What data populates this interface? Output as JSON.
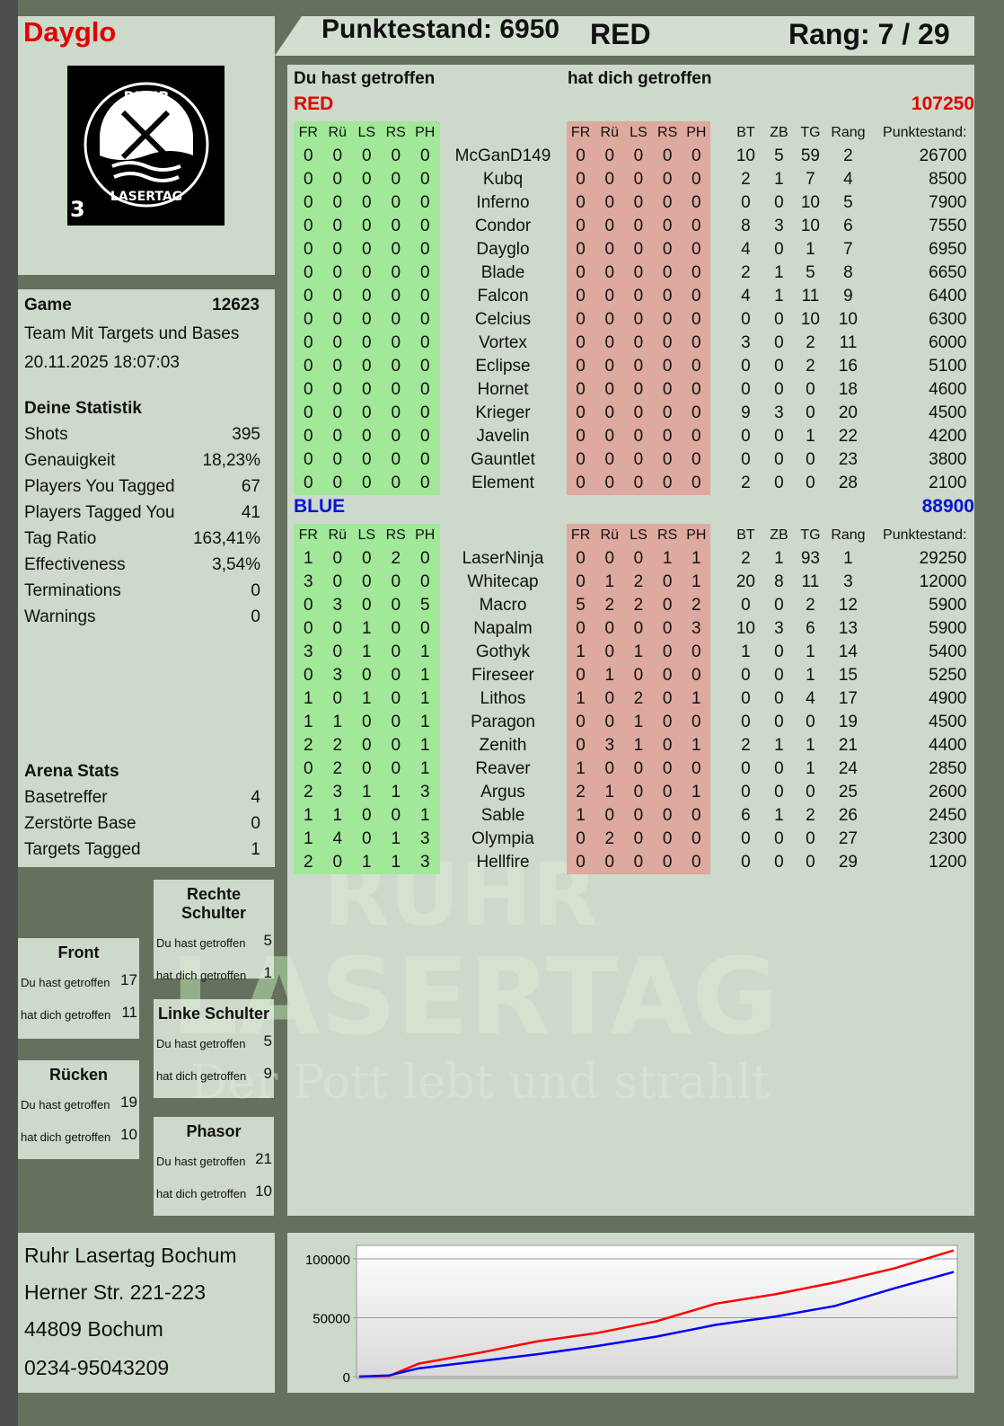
{
  "player": "Dayglo",
  "logo": {
    "text_top": "RUHR",
    "text_bottom": "LASERTAG",
    "badge": "3"
  },
  "header": {
    "score_label": "Punktestand: 6950",
    "team": "RED",
    "rank_label": "Rang: 7 / 29"
  },
  "columns": {
    "you_hit": "Du hast getroffen",
    "hit_you": "hat dich getroffen"
  },
  "headers": [
    "FR",
    "Rü",
    "LS",
    "RS",
    "PH",
    "",
    "FR",
    "Rü",
    "LS",
    "RS",
    "PH",
    "",
    "BT",
    "ZB",
    "TG",
    "Rang",
    "Punktestand:"
  ],
  "teams": [
    {
      "name": "RED",
      "total": "107250",
      "color": "#e30000",
      "rows": [
        [
          "0",
          "0",
          "0",
          "0",
          "0",
          "McGanD149",
          "0",
          "0",
          "0",
          "0",
          "0",
          "10",
          "5",
          "59",
          "2",
          "26700"
        ],
        [
          "0",
          "0",
          "0",
          "0",
          "0",
          "Kubq",
          "0",
          "0",
          "0",
          "0",
          "0",
          "2",
          "1",
          "7",
          "4",
          "8500"
        ],
        [
          "0",
          "0",
          "0",
          "0",
          "0",
          "Inferno",
          "0",
          "0",
          "0",
          "0",
          "0",
          "0",
          "0",
          "10",
          "5",
          "7900"
        ],
        [
          "0",
          "0",
          "0",
          "0",
          "0",
          "Condor",
          "0",
          "0",
          "0",
          "0",
          "0",
          "8",
          "3",
          "10",
          "6",
          "7550"
        ],
        [
          "0",
          "0",
          "0",
          "0",
          "0",
          "Dayglo",
          "0",
          "0",
          "0",
          "0",
          "0",
          "4",
          "0",
          "1",
          "7",
          "6950"
        ],
        [
          "0",
          "0",
          "0",
          "0",
          "0",
          "Blade",
          "0",
          "0",
          "0",
          "0",
          "0",
          "2",
          "1",
          "5",
          "8",
          "6650"
        ],
        [
          "0",
          "0",
          "0",
          "0",
          "0",
          "Falcon",
          "0",
          "0",
          "0",
          "0",
          "0",
          "4",
          "1",
          "11",
          "9",
          "6400"
        ],
        [
          "0",
          "0",
          "0",
          "0",
          "0",
          "Celcius",
          "0",
          "0",
          "0",
          "0",
          "0",
          "0",
          "0",
          "10",
          "10",
          "6300"
        ],
        [
          "0",
          "0",
          "0",
          "0",
          "0",
          "Vortex",
          "0",
          "0",
          "0",
          "0",
          "0",
          "3",
          "0",
          "2",
          "11",
          "6000"
        ],
        [
          "0",
          "0",
          "0",
          "0",
          "0",
          "Eclipse",
          "0",
          "0",
          "0",
          "0",
          "0",
          "0",
          "0",
          "2",
          "16",
          "5100"
        ],
        [
          "0",
          "0",
          "0",
          "0",
          "0",
          "Hornet",
          "0",
          "0",
          "0",
          "0",
          "0",
          "0",
          "0",
          "0",
          "18",
          "4600"
        ],
        [
          "0",
          "0",
          "0",
          "0",
          "0",
          "Krieger",
          "0",
          "0",
          "0",
          "0",
          "0",
          "9",
          "3",
          "0",
          "20",
          "4500"
        ],
        [
          "0",
          "0",
          "0",
          "0",
          "0",
          "Javelin",
          "0",
          "0",
          "0",
          "0",
          "0",
          "0",
          "0",
          "1",
          "22",
          "4200"
        ],
        [
          "0",
          "0",
          "0",
          "0",
          "0",
          "Gauntlet",
          "0",
          "0",
          "0",
          "0",
          "0",
          "0",
          "0",
          "0",
          "23",
          "3800"
        ],
        [
          "0",
          "0",
          "0",
          "0",
          "0",
          "Element",
          "0",
          "0",
          "0",
          "0",
          "0",
          "2",
          "0",
          "0",
          "28",
          "2100"
        ]
      ]
    },
    {
      "name": "BLUE",
      "total": "88900",
      "color": "#0a14d8",
      "rows": [
        [
          "1",
          "0",
          "0",
          "2",
          "0",
          "LaserNinja",
          "0",
          "0",
          "0",
          "1",
          "1",
          "2",
          "1",
          "93",
          "1",
          "29250"
        ],
        [
          "3",
          "0",
          "0",
          "0",
          "0",
          "Whitecap",
          "0",
          "1",
          "2",
          "0",
          "1",
          "20",
          "8",
          "11",
          "3",
          "12000"
        ],
        [
          "0",
          "3",
          "0",
          "0",
          "5",
          "Macro",
          "5",
          "2",
          "2",
          "0",
          "2",
          "0",
          "0",
          "2",
          "12",
          "5900"
        ],
        [
          "0",
          "0",
          "1",
          "0",
          "0",
          "Napalm",
          "0",
          "0",
          "0",
          "0",
          "3",
          "10",
          "3",
          "6",
          "13",
          "5900"
        ],
        [
          "3",
          "0",
          "1",
          "0",
          "1",
          "Gothyk",
          "1",
          "0",
          "1",
          "0",
          "0",
          "1",
          "0",
          "1",
          "14",
          "5400"
        ],
        [
          "0",
          "3",
          "0",
          "0",
          "1",
          "Fireseer",
          "0",
          "1",
          "0",
          "0",
          "0",
          "0",
          "0",
          "1",
          "15",
          "5250"
        ],
        [
          "1",
          "0",
          "1",
          "0",
          "1",
          "Lithos",
          "1",
          "0",
          "2",
          "0",
          "1",
          "0",
          "0",
          "4",
          "17",
          "4900"
        ],
        [
          "1",
          "1",
          "0",
          "0",
          "1",
          "Paragon",
          "0",
          "0",
          "1",
          "0",
          "0",
          "0",
          "0",
          "0",
          "19",
          "4500"
        ],
        [
          "2",
          "2",
          "0",
          "0",
          "1",
          "Zenith",
          "0",
          "3",
          "1",
          "0",
          "1",
          "2",
          "1",
          "1",
          "21",
          "4400"
        ],
        [
          "0",
          "2",
          "0",
          "0",
          "1",
          "Reaver",
          "1",
          "0",
          "0",
          "0",
          "0",
          "0",
          "0",
          "1",
          "24",
          "2850"
        ],
        [
          "2",
          "3",
          "1",
          "1",
          "3",
          "Argus",
          "2",
          "1",
          "0",
          "0",
          "1",
          "0",
          "0",
          "0",
          "25",
          "2600"
        ],
        [
          "1",
          "1",
          "0",
          "0",
          "1",
          "Sable",
          "1",
          "0",
          "0",
          "0",
          "0",
          "6",
          "1",
          "2",
          "26",
          "2450"
        ],
        [
          "1",
          "4",
          "0",
          "1",
          "3",
          "Olympia",
          "0",
          "2",
          "0",
          "0",
          "0",
          "0",
          "0",
          "0",
          "27",
          "2300"
        ],
        [
          "2",
          "0",
          "1",
          "1",
          "3",
          "Hellfire",
          "0",
          "0",
          "0",
          "0",
          "0",
          "0",
          "0",
          "0",
          "29",
          "1200"
        ]
      ]
    }
  ],
  "game": {
    "label": "Game",
    "id": "12623",
    "mode": "Team Mit Targets und Bases",
    "date": "20.11.2025 18:07:03"
  },
  "stats": {
    "title": "Deine Statistik",
    "items": [
      [
        "Shots",
        "395"
      ],
      [
        "Genauigkeit",
        "18,23%"
      ],
      [
        "Players You Tagged",
        "67"
      ],
      [
        "Players Tagged You",
        "41"
      ],
      [
        "Tag Ratio",
        "163,41%"
      ],
      [
        "Effectiveness",
        "3,54%"
      ],
      [
        "Terminations",
        "0"
      ],
      [
        "Warnings",
        "0"
      ]
    ]
  },
  "arena": {
    "title": "Arena Stats",
    "items": [
      [
        "Basetreffer",
        "4"
      ],
      [
        "Zerstörte Base",
        "0"
      ],
      [
        "Targets Tagged",
        "1"
      ]
    ]
  },
  "body_parts": [
    {
      "key": "rechte-schulter",
      "title": "Rechte Schulter",
      "you_hit": "5",
      "hit_you": "1"
    },
    {
      "key": "front",
      "title": "Front",
      "you_hit": "17",
      "hit_you": "11"
    },
    {
      "key": "linke-schulter",
      "title": "Linke Schulter",
      "you_hit": "5",
      "hit_you": "9"
    },
    {
      "key": "ruecken",
      "title": "Rücken",
      "you_hit": "19",
      "hit_you": "10"
    },
    {
      "key": "phasor",
      "title": "Phasor",
      "you_hit": "21",
      "hit_you": "10"
    }
  ],
  "address": [
    "Ruhr Lasertag Bochum",
    "Herner Str. 221-223",
    "44809 Bochum",
    "0234-95043209"
  ],
  "watermark": {
    "line1": "RUHR",
    "line2": "LASERTAG",
    "line3": "Der Pott lebt und strahlt"
  },
  "chart_data": {
    "type": "line",
    "ylim": [
      0,
      111500
    ],
    "yticks": [
      "0",
      "50000",
      "100000"
    ],
    "grid": true,
    "series": [
      {
        "color": "#ff0000",
        "x": [
          0,
          5,
          10,
          20,
          30,
          40,
          50,
          60,
          70,
          80,
          90,
          100
        ],
        "values": [
          0,
          500,
          11000,
          20000,
          30000,
          37000,
          47000,
          62000,
          70000,
          80000,
          92000,
          107250
        ]
      },
      {
        "color": "#0000ff",
        "x": [
          0,
          5,
          10,
          20,
          30,
          40,
          50,
          60,
          70,
          80,
          90,
          100
        ],
        "values": [
          0,
          1000,
          7000,
          13000,
          19000,
          26000,
          34000,
          44000,
          51000,
          60000,
          75000,
          88900
        ]
      }
    ]
  }
}
